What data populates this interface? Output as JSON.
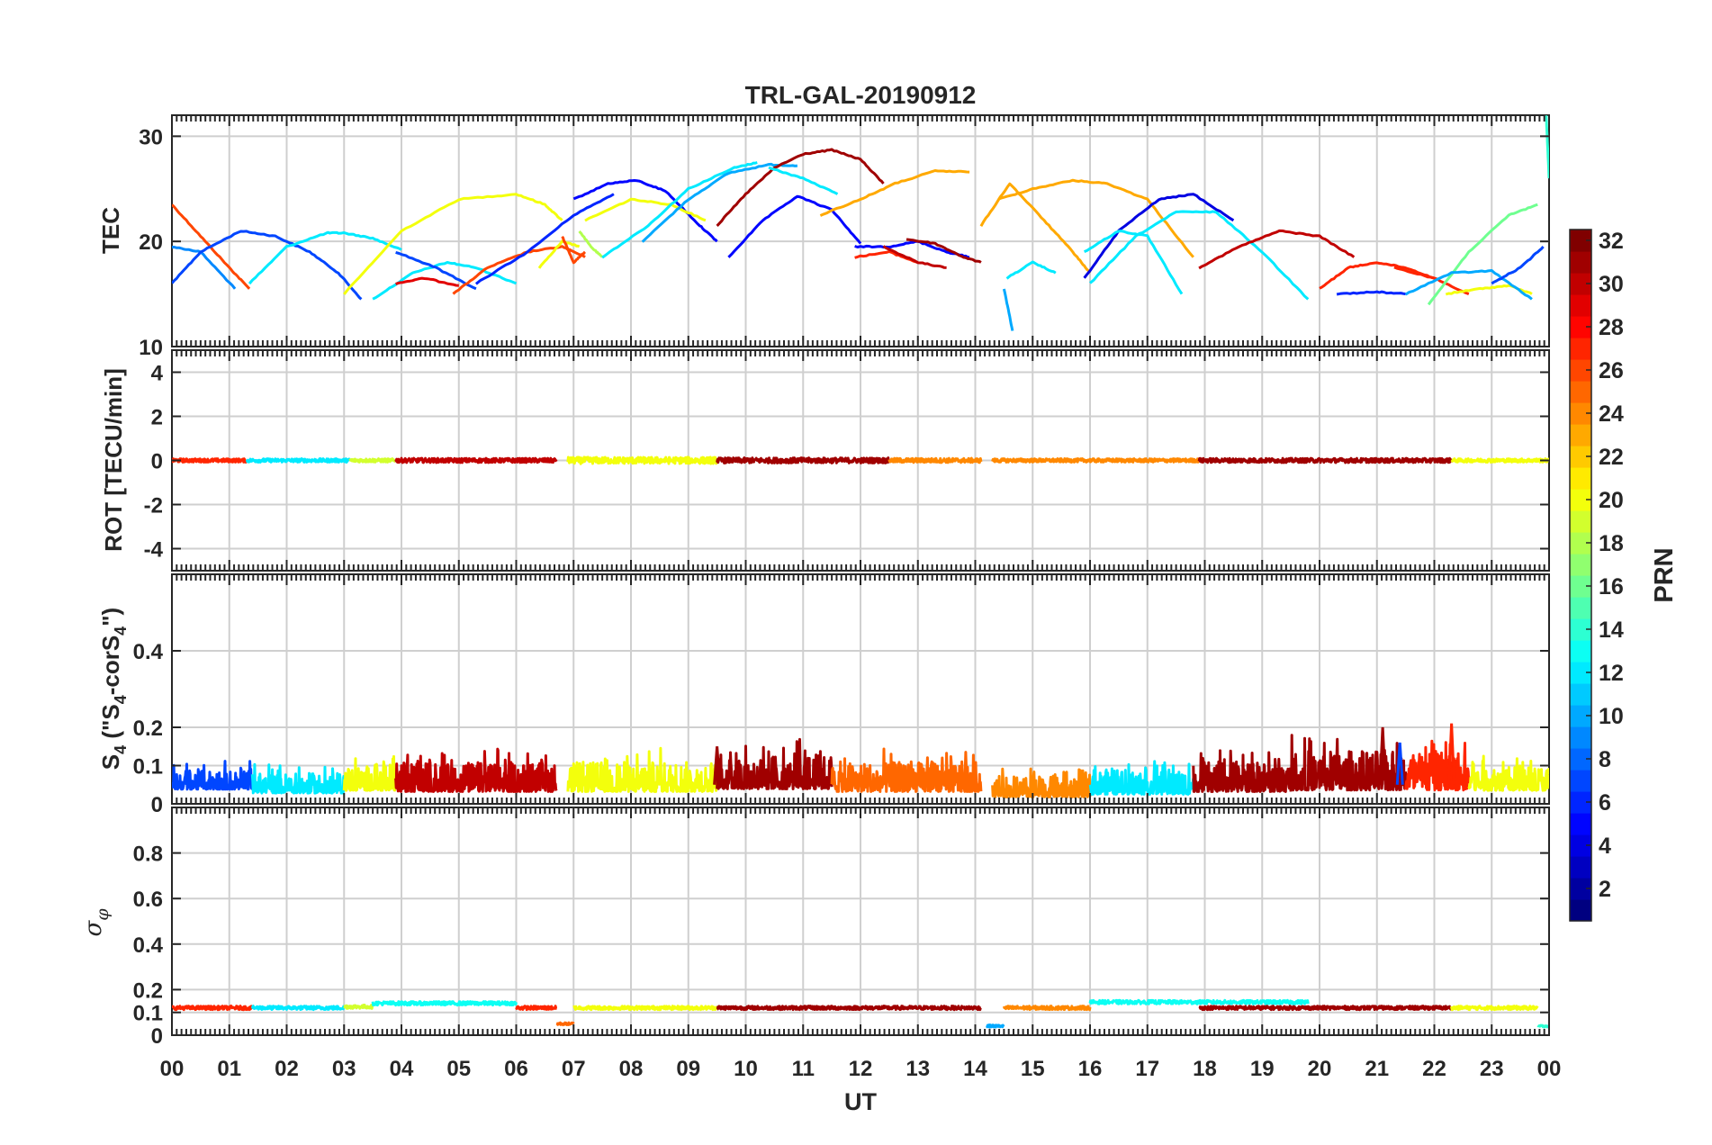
{
  "chart_data": {
    "type": "line",
    "title": "TRL-GAL-20190912",
    "xlabel": "UT",
    "x_tick_labels": [
      "00",
      "01",
      "02",
      "03",
      "04",
      "05",
      "06",
      "07",
      "08",
      "09",
      "10",
      "11",
      "12",
      "13",
      "14",
      "15",
      "16",
      "17",
      "18",
      "19",
      "20",
      "21",
      "22",
      "23",
      "00"
    ],
    "xlim_hours": [
      0,
      24
    ],
    "grid": true,
    "colormap": "jet",
    "colorbar": {
      "label": "PRN",
      "ticks": [
        2,
        4,
        6,
        8,
        10,
        12,
        14,
        16,
        18,
        20,
        22,
        24,
        26,
        28,
        30,
        32
      ],
      "ticks_text": [
        "2",
        "4",
        "6",
        "8",
        "10",
        "12",
        "14",
        "16",
        "18",
        "20",
        "22",
        "24",
        "26",
        "28",
        "30",
        "32"
      ],
      "range": [
        1,
        32
      ],
      "placement": "right"
    },
    "panels": [
      {
        "id": "tec",
        "ylabel": "TEC",
        "ylim": [
          10,
          32
        ],
        "yticks": [
          10,
          20,
          30
        ],
        "yticks_text": [
          "10",
          "20",
          "30"
        ],
        "arcs": [
          {
            "prn": 26,
            "t": [
              0.0,
              0.5,
              1.0,
              1.35
            ],
            "v": [
              23.5,
              20.5,
              17.5,
              15.5
            ]
          },
          {
            "prn": 9,
            "t": [
              0.0,
              0.5,
              1.1
            ],
            "v": [
              19.5,
              19.0,
              15.5
            ]
          },
          {
            "prn": 7,
            "t": [
              0.0,
              0.5,
              1.2,
              1.8,
              2.4,
              2.9,
              3.3
            ],
            "v": [
              16.0,
              19.0,
              21.0,
              20.5,
              19.0,
              17.0,
              14.5
            ]
          },
          {
            "prn": 12,
            "t": [
              1.35,
              2.0,
              2.7,
              3.0,
              3.5,
              4.0
            ],
            "v": [
              16.0,
              19.5,
              20.8,
              20.8,
              20.3,
              19.2
            ]
          },
          {
            "prn": 20,
            "t": [
              3.0,
              4.0,
              5.0,
              6.0,
              6.5,
              6.8
            ],
            "v": [
              15.0,
              21.0,
              24.0,
              24.5,
              23.5,
              22.0
            ]
          },
          {
            "prn": 12,
            "t": [
              3.5,
              4.2,
              4.8,
              5.3,
              6.0
            ],
            "v": [
              14.5,
              17.0,
              18.0,
              17.5,
              16.0
            ]
          },
          {
            "prn": 29,
            "t": [
              3.9,
              4.4,
              5.0
            ],
            "v": [
              16.0,
              16.5,
              15.8
            ]
          },
          {
            "prn": 7,
            "t": [
              3.9,
              4.6,
              5.3
            ],
            "v": [
              19.0,
              17.5,
              15.5
            ]
          },
          {
            "prn": 26,
            "t": [
              4.9,
              5.5,
              6.2,
              6.8,
              7.2
            ],
            "v": [
              15.0,
              17.5,
              19.0,
              19.5,
              18.5
            ]
          },
          {
            "prn": 6,
            "t": [
              5.3,
              6.2,
              7.0,
              7.7
            ],
            "v": [
              16.0,
              19.0,
              22.5,
              24.5
            ]
          },
          {
            "prn": 20,
            "t": [
              6.4,
              6.8,
              7.1
            ],
            "v": [
              17.5,
              20.0,
              19.5
            ]
          },
          {
            "prn": 26,
            "t": [
              6.8,
              7.0,
              7.2
            ],
            "v": [
              20.5,
              18.0,
              19.0
            ]
          },
          {
            "prn": 18,
            "t": [
              7.1,
              7.3,
              7.5
            ],
            "v": [
              21.0,
              19.5,
              18.5
            ]
          },
          {
            "prn": 5,
            "t": [
              7.0,
              7.6,
              8.1,
              8.6,
              9.2,
              9.5
            ],
            "v": [
              24.0,
              25.5,
              25.8,
              24.8,
              21.5,
              20.0
            ]
          },
          {
            "prn": 20,
            "t": [
              7.2,
              8.0,
              8.7,
              9.3
            ],
            "v": [
              22.0,
              24.0,
              23.5,
              22.0
            ]
          },
          {
            "prn": 12,
            "t": [
              7.5,
              8.3,
              9.0,
              9.8,
              10.2
            ],
            "v": [
              18.5,
              21.5,
              25.0,
              27.0,
              27.5
            ]
          },
          {
            "prn": 10,
            "t": [
              8.2,
              9.0,
              9.7,
              10.4,
              10.9
            ],
            "v": [
              20.0,
              24.0,
              26.5,
              27.3,
              27.2
            ]
          },
          {
            "prn": 31,
            "t": [
              9.5,
              10.0,
              10.5,
              11.0,
              11.5,
              12.0,
              12.4
            ],
            "v": [
              21.5,
              24.5,
              27.0,
              28.3,
              28.7,
              27.8,
              25.5
            ]
          },
          {
            "prn": 5,
            "t": [
              9.7,
              10.3,
              10.9,
              11.5,
              12.0
            ],
            "v": [
              18.5,
              22.0,
              24.3,
              23.0,
              19.8
            ]
          },
          {
            "prn": 12,
            "t": [
              10.4,
              11.0,
              11.6
            ],
            "v": [
              27.0,
              26.0,
              24.5
            ]
          },
          {
            "prn": 23,
            "t": [
              11.3,
              12.0,
              12.6,
              13.3,
              13.9
            ],
            "v": [
              22.5,
              24.0,
              25.5,
              26.7,
              26.6
            ]
          },
          {
            "prn": 5,
            "t": [
              11.9,
              12.5,
              13.0,
              13.5,
              13.9
            ],
            "v": [
              19.5,
              19.5,
              20.0,
              19.0,
              18.5
            ]
          },
          {
            "prn": 27,
            "t": [
              11.9,
              12.5,
              13.0
            ],
            "v": [
              18.5,
              19.0,
              18.0
            ]
          },
          {
            "prn": 30,
            "t": [
              12.4,
              13.0,
              13.5
            ],
            "v": [
              19.5,
              18.0,
              17.5
            ]
          },
          {
            "prn": 31,
            "t": [
              12.8,
              13.3,
              13.8,
              14.1
            ],
            "v": [
              20.2,
              19.8,
              18.5,
              18.0
            ]
          },
          {
            "prn": 23,
            "t": [
              14.1,
              14.6,
              15.2,
              15.7,
              16.0
            ],
            "v": [
              21.5,
              25.5,
              22.0,
              19.0,
              17.0
            ]
          },
          {
            "prn": 23,
            "t": [
              14.4,
              15.0,
              15.7,
              16.3,
              17.0,
              17.8
            ],
            "v": [
              24.0,
              25.0,
              25.8,
              25.5,
              24.0,
              18.5
            ]
          },
          {
            "prn": 10,
            "t": [
              14.5,
              14.65
            ],
            "v": [
              15.5,
              11.5
            ]
          },
          {
            "prn": 12,
            "t": [
              14.55,
              15.0,
              15.4
            ],
            "v": [
              16.5,
              18.0,
              17.0
            ]
          },
          {
            "prn": 4,
            "t": [
              15.9,
              16.5,
              17.2,
              17.8,
              18.5
            ],
            "v": [
              16.5,
              21.0,
              24.0,
              24.5,
              22.0
            ]
          },
          {
            "prn": 12,
            "t": [
              15.9,
              16.5,
              17.0,
              17.6
            ],
            "v": [
              19.0,
              21.0,
              20.5,
              15.0
            ]
          },
          {
            "prn": 12,
            "t": [
              16.0,
              16.8,
              17.5,
              18.2,
              19.0,
              19.8
            ],
            "v": [
              16.0,
              20.5,
              22.8,
              22.8,
              19.0,
              14.5
            ]
          },
          {
            "prn": 30,
            "t": [
              17.9,
              18.6,
              19.3,
              20.0,
              20.6
            ],
            "v": [
              17.5,
              19.5,
              21.0,
              20.5,
              18.5
            ]
          },
          {
            "prn": 27,
            "t": [
              20.0,
              20.5,
              21.0,
              21.5,
              22.0
            ],
            "v": [
              15.5,
              17.5,
              18.0,
              17.5,
              16.5
            ]
          },
          {
            "prn": 6,
            "t": [
              20.3,
              21.0,
              21.5
            ],
            "v": [
              15.0,
              15.2,
              15.0
            ]
          },
          {
            "prn": 27,
            "t": [
              21.3,
              22.0,
              22.6
            ],
            "v": [
              17.5,
              16.5,
              15.0
            ]
          },
          {
            "prn": 16,
            "t": [
              21.9,
              22.6,
              23.3,
              23.8
            ],
            "v": [
              14.0,
              19.0,
              22.5,
              23.5
            ]
          },
          {
            "prn": 20,
            "t": [
              22.2,
              22.8,
              23.3,
              23.7
            ],
            "v": [
              15.0,
              15.5,
              15.8,
              15.0
            ]
          },
          {
            "prn": 10,
            "t": [
              21.5,
              22.3,
              23.0,
              23.7
            ],
            "v": [
              15.0,
              17.0,
              17.2,
              14.5
            ]
          },
          {
            "prn": 7,
            "t": [
              23.0,
              23.5,
              23.9
            ],
            "v": [
              16.0,
              17.5,
              19.5
            ]
          },
          {
            "prn": 14,
            "t": [
              23.95,
              24.0
            ],
            "v": [
              32.0,
              26.0
            ]
          }
        ]
      },
      {
        "id": "rot",
        "ylabel": "ROT [TECU/min]",
        "ylim": [
          -5,
          5
        ],
        "yticks": [
          -4,
          -2,
          0,
          2,
          4
        ],
        "yticks_text": [
          "-4",
          "-2",
          "0",
          "2",
          "4"
        ],
        "segments": [
          {
            "prn": 27,
            "t0": 0.0,
            "t1": 1.3,
            "base": 0.0,
            "amp": 0.08
          },
          {
            "prn": 12,
            "t0": 1.3,
            "t1": 3.1,
            "base": 0.0,
            "amp": 0.08
          },
          {
            "prn": 19,
            "t0": 3.1,
            "t1": 3.9,
            "base": 0.0,
            "amp": 0.08
          },
          {
            "prn": 30,
            "t0": 3.9,
            "t1": 6.7,
            "base": 0.0,
            "amp": 0.1
          },
          {
            "prn": 20,
            "t0": 6.9,
            "t1": 9.5,
            "base": 0.0,
            "amp": 0.15
          },
          {
            "prn": 31,
            "t0": 9.5,
            "t1": 12.5,
            "base": 0.0,
            "amp": 0.12
          },
          {
            "prn": 24,
            "t0": 12.5,
            "t1": 14.1,
            "base": 0.0,
            "amp": 0.1
          },
          {
            "prn": 24,
            "t0": 14.3,
            "t1": 17.9,
            "base": 0.0,
            "amp": 0.08
          },
          {
            "prn": 31,
            "t0": 17.9,
            "t1": 22.3,
            "base": 0.0,
            "amp": 0.1
          },
          {
            "prn": 20,
            "t0": 22.3,
            "t1": 24.0,
            "base": 0.0,
            "amp": 0.08
          }
        ]
      },
      {
        "id": "s4",
        "ylabel": "S4 (\"S4-corS4\")",
        "ylim": [
          0,
          0.6
        ],
        "yticks": [
          0,
          0.1,
          0.2,
          0.4
        ],
        "yticks_text": [
          "0",
          "0.1",
          "0.2",
          "0.4"
        ],
        "segments": [
          {
            "prn": 7,
            "t0": 0.0,
            "t1": 1.4,
            "base": 0.05,
            "amp": 0.04
          },
          {
            "prn": 12,
            "t0": 1.4,
            "t1": 3.0,
            "base": 0.04,
            "amp": 0.04
          },
          {
            "prn": 20,
            "t0": 3.0,
            "t1": 3.9,
            "base": 0.05,
            "amp": 0.05
          },
          {
            "prn": 30,
            "t0": 3.9,
            "t1": 6.7,
            "base": 0.05,
            "amp": 0.06
          },
          {
            "prn": 20,
            "t0": 6.9,
            "t1": 9.5,
            "base": 0.05,
            "amp": 0.06
          },
          {
            "prn": 31,
            "t0": 9.5,
            "t1": 11.5,
            "base": 0.06,
            "amp": 0.07
          },
          {
            "prn": 25,
            "t0": 11.5,
            "t1": 14.1,
            "base": 0.05,
            "amp": 0.06
          },
          {
            "prn": 24,
            "t0": 14.3,
            "t1": 16.0,
            "base": 0.03,
            "amp": 0.04
          },
          {
            "prn": 12,
            "t0": 16.0,
            "t1": 17.8,
            "base": 0.04,
            "amp": 0.05
          },
          {
            "prn": 31,
            "t0": 17.8,
            "t1": 19.5,
            "base": 0.05,
            "amp": 0.06
          },
          {
            "prn": 31,
            "t0": 19.5,
            "t1": 21.5,
            "base": 0.06,
            "amp": 0.08
          },
          {
            "prn": 27,
            "t0": 21.5,
            "t1": 22.6,
            "base": 0.06,
            "amp": 0.08
          },
          {
            "prn": 20,
            "t0": 22.6,
            "t1": 24.0,
            "base": 0.05,
            "amp": 0.05
          }
        ],
        "spikes": [
          {
            "prn": 31,
            "t": 21.1,
            "v": 0.2
          },
          {
            "prn": 27,
            "t": 22.3,
            "v": 0.21
          },
          {
            "prn": 31,
            "t": 9.5,
            "v": 0.15
          },
          {
            "prn": 7,
            "t": 21.4,
            "v": 0.16
          }
        ]
      },
      {
        "id": "sigma",
        "ylabel": "σφ",
        "ylim": [
          0,
          1
        ],
        "yticks": [
          0,
          0.1,
          0.2,
          0.4,
          0.6,
          0.8
        ],
        "yticks_text": [
          "0",
          "0.1",
          "0.2",
          "0.4",
          "0.6",
          "0.8"
        ],
        "segments": [
          {
            "prn": 27,
            "t0": 0.0,
            "t1": 1.4,
            "base": 0.12,
            "amp": 0.008
          },
          {
            "prn": 12,
            "t0": 1.4,
            "t1": 3.0,
            "base": 0.12,
            "amp": 0.008
          },
          {
            "prn": 19,
            "t0": 3.0,
            "t1": 3.5,
            "base": 0.125,
            "amp": 0.008
          },
          {
            "prn": 13,
            "t0": 3.5,
            "t1": 6.0,
            "base": 0.14,
            "amp": 0.008
          },
          {
            "prn": 27,
            "t0": 6.0,
            "t1": 6.7,
            "base": 0.12,
            "amp": 0.008
          },
          {
            "prn": 25,
            "t0": 6.7,
            "t1": 7.0,
            "base": 0.05,
            "amp": 0.005
          },
          {
            "prn": 20,
            "t0": 7.0,
            "t1": 9.5,
            "base": 0.12,
            "amp": 0.008
          },
          {
            "prn": 31,
            "t0": 9.5,
            "t1": 14.1,
            "base": 0.12,
            "amp": 0.008
          },
          {
            "prn": 10,
            "t0": 14.2,
            "t1": 14.5,
            "base": 0.04,
            "amp": 0.005
          },
          {
            "prn": 24,
            "t0": 14.5,
            "t1": 16.0,
            "base": 0.12,
            "amp": 0.008
          },
          {
            "prn": 13,
            "t0": 16.0,
            "t1": 19.8,
            "base": 0.145,
            "amp": 0.008
          },
          {
            "prn": 31,
            "t0": 17.9,
            "t1": 22.3,
            "base": 0.12,
            "amp": 0.008
          },
          {
            "prn": 20,
            "t0": 22.3,
            "t1": 23.8,
            "base": 0.12,
            "amp": 0.008
          },
          {
            "prn": 14,
            "t0": 23.8,
            "t1": 24.0,
            "base": 0.04,
            "amp": 0.004
          }
        ]
      }
    ]
  }
}
